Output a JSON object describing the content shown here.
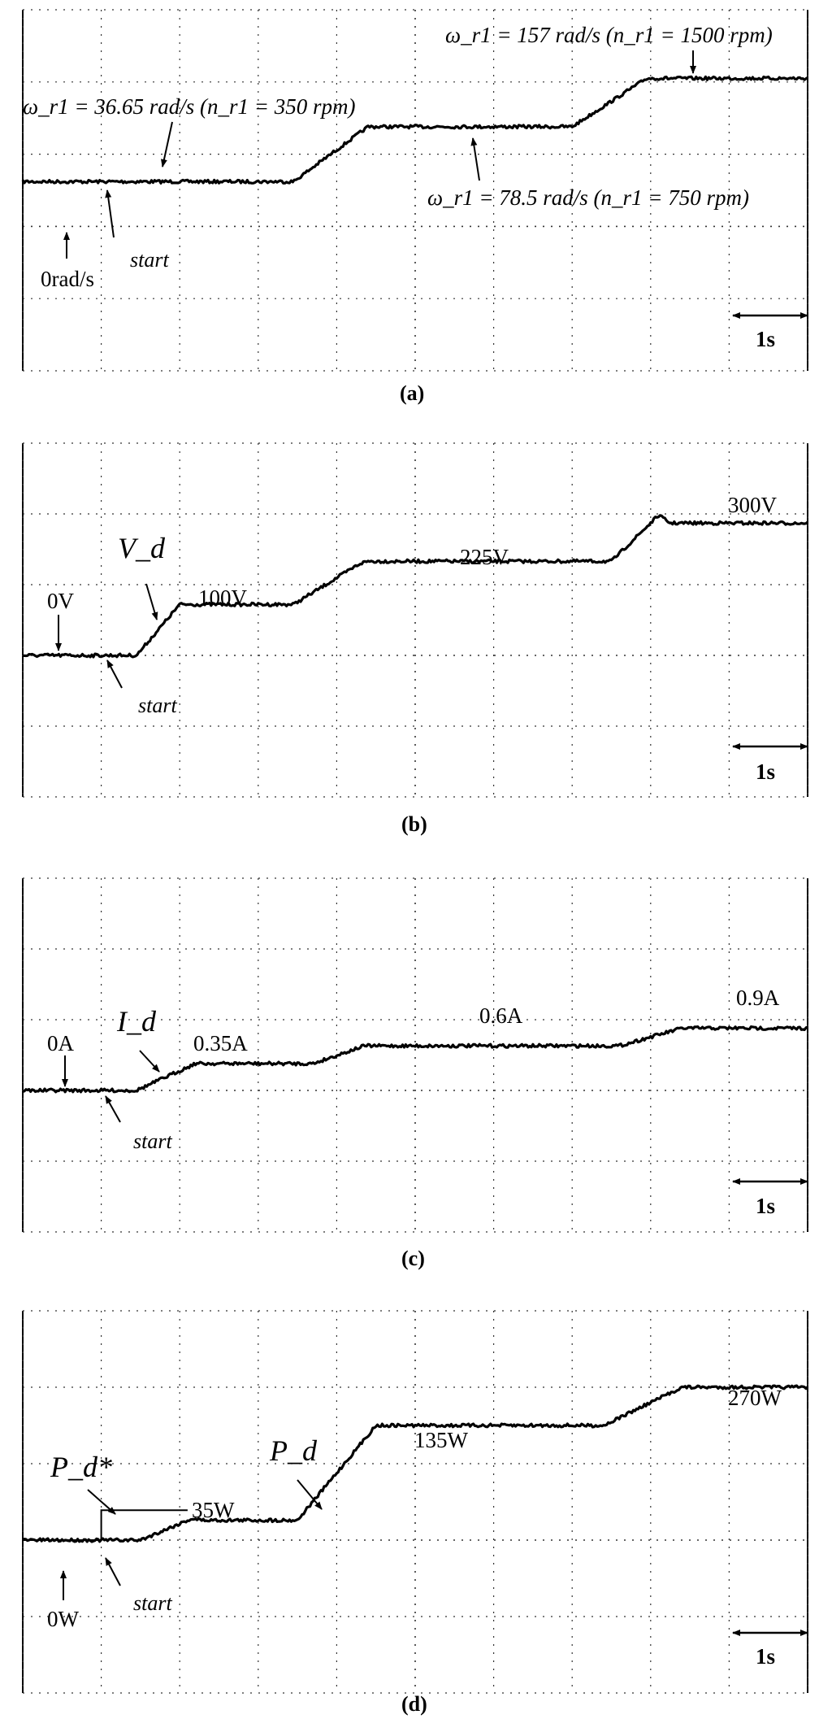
{
  "figure": {
    "panels": [
      {
        "id": "a",
        "caption": "(a)",
        "annotations": {
          "top_right": "ω_r1 = 157 rad/s (n_r1 = 1500 rpm)",
          "left": "ω_r1 = 36.65 rad/s (n_r1 = 350 rpm)",
          "mid": "ω_r1 = 78.5 rad/s (n_r1 = 750 rpm)",
          "zero": "0rad/s",
          "start": "start",
          "scale": "1s"
        }
      },
      {
        "id": "b",
        "caption": "(b)",
        "annotations": {
          "zero": "0V",
          "symbol": "V_d",
          "level1": "100V",
          "level2": "225V",
          "level3": "300V",
          "start": "start",
          "scale": "1s"
        }
      },
      {
        "id": "c",
        "caption": "(c)",
        "annotations": {
          "zero": "0A",
          "symbol": "I_d",
          "level1": "0.35A",
          "level2": "0.6A",
          "level3": "0.9A",
          "start": "start",
          "scale": "1s"
        }
      },
      {
        "id": "d",
        "caption": "(d)",
        "annotations": {
          "ref_symbol": "P_d*",
          "symbol": "P_d",
          "zero": "0W",
          "level1": "35W",
          "level2": "135W",
          "level3": "270W",
          "start": "start",
          "scale": "1s"
        }
      }
    ]
  },
  "chart_data": [
    {
      "type": "line",
      "panel": "a",
      "series": [
        {
          "points": [
            [
              0,
              0.62
            ],
            [
              0.5,
              0.62
            ],
            [
              1,
              0.62
            ],
            [
              2,
              0.62
            ],
            [
              3.45,
              0.62
            ],
            [
              4.4,
              1.38
            ],
            [
              5,
              1.38
            ],
            [
              6,
              1.38
            ],
            [
              7.0,
              1.38
            ],
            [
              7.95,
              2.05
            ],
            [
              10,
              2.05
            ]
          ]
        }
      ],
      "xlim": [
        0,
        10
      ],
      "ylim": [
        -2,
        3
      ],
      "grid": true,
      "levels": [
        {
          "label": "ω_r1 = 36.65 rad/s",
          "value": 0.62
        },
        {
          "label": "ω_r1 = 78.5 rad/s",
          "value": 1.38
        },
        {
          "label": "ω_r1 = 157 rad/s",
          "value": 2.05
        }
      ]
    },
    {
      "type": "line",
      "panel": "b",
      "series": [
        {
          "points": [
            [
              0,
              0
            ],
            [
              1.45,
              0
            ],
            [
              2.0,
              0.72
            ],
            [
              3.45,
              0.72
            ],
            [
              4.3,
              1.3
            ],
            [
              4.4,
              1.33
            ],
            [
              7.5,
              1.33
            ],
            [
              8.1,
              1.98
            ],
            [
              8.25,
              1.87
            ],
            [
              10,
              1.87
            ]
          ]
        }
      ],
      "xlim": [
        0,
        10
      ],
      "ylim": [
        -2,
        3
      ],
      "grid": true,
      "levels": [
        {
          "label": "100V",
          "value": 0.72
        },
        {
          "label": "225V",
          "value": 1.33
        },
        {
          "label": "300V",
          "value": 1.87
        }
      ]
    },
    {
      "type": "line",
      "panel": "c",
      "series": [
        {
          "points": [
            [
              0,
              0
            ],
            [
              1.45,
              0
            ],
            [
              2.2,
              0.38
            ],
            [
              3.7,
              0.38
            ],
            [
              4.35,
              0.63
            ],
            [
              7.6,
              0.63
            ],
            [
              8.4,
              0.88
            ],
            [
              10,
              0.88
            ]
          ]
        }
      ],
      "xlim": [
        0,
        10
      ],
      "ylim": [
        -2,
        3
      ],
      "grid": true,
      "levels": [
        {
          "label": "0.35A",
          "value": 0.38
        },
        {
          "label": "0.6A",
          "value": 0.63
        },
        {
          "label": "0.9A",
          "value": 0.88
        }
      ]
    },
    {
      "type": "line",
      "panel": "d",
      "series": [
        {
          "name": "P_d*",
          "points": [
            [
              0,
              0
            ],
            [
              1.0,
              0
            ],
            [
              1.0,
              0.39
            ],
            [
              2.1,
              0.39
            ],
            [
              2.1,
              0.39
            ]
          ]
        },
        {
          "name": "P_d",
          "points": [
            [
              0,
              0
            ],
            [
              1.5,
              0
            ],
            [
              2.15,
              0.28
            ],
            [
              2.3,
              0.26
            ],
            [
              3.5,
              0.26
            ],
            [
              4.5,
              1.5
            ],
            [
              5.5,
              1.5
            ],
            [
              7.4,
              1.5
            ],
            [
              8.4,
              2.0
            ],
            [
              10,
              2.0
            ]
          ]
        }
      ],
      "xlim": [
        0,
        10
      ],
      "ylim": [
        -2,
        3
      ],
      "grid": true,
      "levels": [
        {
          "label": "35W",
          "value": 0.26
        },
        {
          "label": "135W",
          "value": 1.5
        },
        {
          "label": "270W",
          "value": 2.0
        }
      ]
    }
  ]
}
